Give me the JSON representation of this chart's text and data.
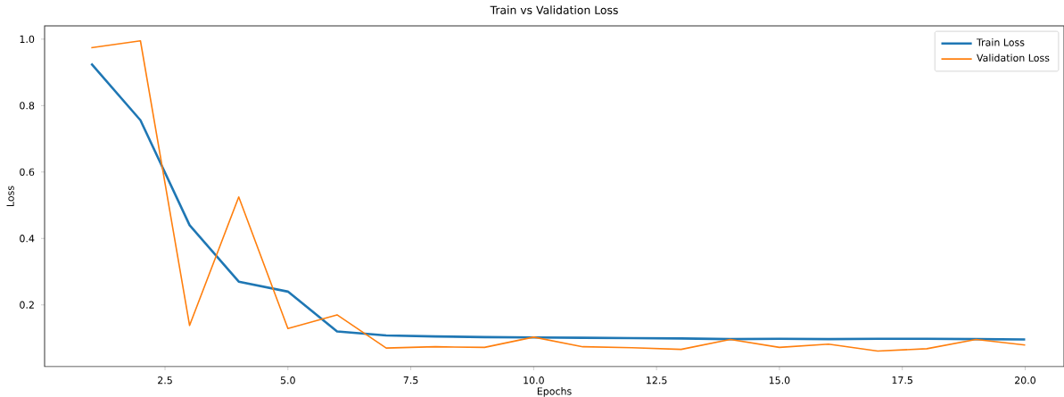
{
  "chart_data": {
    "type": "line",
    "title": "Train vs Validation Loss",
    "xlabel": "Epochs",
    "ylabel": "Loss",
    "x": [
      1,
      2,
      3,
      4,
      5,
      6,
      7,
      8,
      9,
      10,
      11,
      12,
      13,
      14,
      15,
      16,
      17,
      18,
      19,
      20
    ],
    "series": [
      {
        "name": "Train Loss",
        "color": "#1f77b4",
        "values": [
          0.926,
          0.756,
          0.44,
          0.27,
          0.24,
          0.12,
          0.108,
          0.105,
          0.103,
          0.102,
          0.101,
          0.1,
          0.099,
          0.097,
          0.098,
          0.097,
          0.098,
          0.098,
          0.097,
          0.096
        ]
      },
      {
        "name": "Validation Loss",
        "color": "#ff7f0e",
        "values": [
          0.974,
          0.995,
          0.138,
          0.525,
          0.129,
          0.17,
          0.07,
          0.074,
          0.072,
          0.103,
          0.074,
          0.071,
          0.066,
          0.096,
          0.072,
          0.082,
          0.061,
          0.068,
          0.096,
          0.079
        ]
      }
    ],
    "xlim": [
      0.05,
      20.79
    ],
    "ylim": [
      0.014,
      1.04
    ],
    "xticks": [
      {
        "value": 2.5,
        "label": "2.5"
      },
      {
        "value": 5,
        "label": "5.0"
      },
      {
        "value": 7.5,
        "label": "7.5"
      },
      {
        "value": 10,
        "label": "10.0"
      },
      {
        "value": 12.5,
        "label": "12.5"
      },
      {
        "value": 15,
        "label": "15.0"
      },
      {
        "value": 17.5,
        "label": "17.5"
      },
      {
        "value": 20,
        "label": "20.0"
      }
    ],
    "yticks": [
      0.2,
      0.4,
      0.6,
      0.8,
      {
        "value": 1.0,
        "label": "1.0"
      }
    ],
    "legend": "top right",
    "grid": false,
    "marker": "none",
    "line_style": "solid"
  }
}
